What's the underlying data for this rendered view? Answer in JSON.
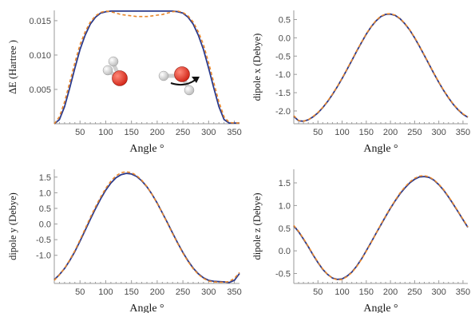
{
  "colors": {
    "series_solid": "#2b3a8c",
    "series_dashed": "#e8862a",
    "axis": "#9a9a9a",
    "oxygen": "#d42a1c",
    "hydrogen": "#bdbdbd"
  },
  "chart_data": [
    {
      "type": "line",
      "title": "",
      "xlabel": "Angle °",
      "ylabel": "ΔE (Hartree )",
      "xlim": [
        0,
        360
      ],
      "ylim": [
        0,
        0.0165
      ],
      "xticks": [
        50,
        100,
        150,
        200,
        250,
        300,
        350
      ],
      "yticks": [
        0.005,
        0.01,
        0.015
      ],
      "ytick_labels": [
        "0.005",
        "0.010",
        "0.015"
      ],
      "grid": false,
      "inset": "water-molecules",
      "series": [
        {
          "style": "solid",
          "x": [
            0,
            10,
            20,
            30,
            40,
            50,
            60,
            70,
            80,
            90,
            100,
            110,
            120,
            130,
            140,
            150,
            160,
            170,
            180,
            190,
            200,
            210,
            220,
            230,
            240,
            250,
            260,
            270,
            280,
            290,
            300,
            310,
            320,
            330,
            340,
            350,
            360
          ],
          "y": [
            0,
            0.0006,
            0.0025,
            0.0052,
            0.0081,
            0.0108,
            0.0129,
            0.0145,
            0.0155,
            0.0161,
            0.0163,
            0.0164,
            0.0164,
            0.0164,
            0.0164,
            0.0164,
            0.0164,
            0.0164,
            0.0164,
            0.0164,
            0.0164,
            0.0164,
            0.0164,
            0.0164,
            0.0163,
            0.0161,
            0.0155,
            0.0145,
            0.0129,
            0.0108,
            0.0081,
            0.0052,
            0.0025,
            0.0006,
            0.0001,
            0.0001,
            0.0001
          ]
        },
        {
          "style": "dashed",
          "x": [
            0,
            10,
            20,
            30,
            40,
            50,
            60,
            70,
            80,
            90,
            100,
            110,
            120,
            130,
            140,
            150,
            160,
            170,
            180,
            190,
            200,
            210,
            220,
            230,
            240,
            250,
            260,
            270,
            280,
            290,
            300,
            310,
            320,
            330,
            340,
            350,
            360
          ],
          "y": [
            0,
            0.001,
            0.0032,
            0.006,
            0.0089,
            0.0115,
            0.0134,
            0.0148,
            0.0157,
            0.0162,
            0.0164,
            0.0163,
            0.0161,
            0.0159,
            0.0158,
            0.0157,
            0.0156,
            0.0156,
            0.0156,
            0.0157,
            0.0158,
            0.0159,
            0.0161,
            0.0163,
            0.0164,
            0.0162,
            0.0157,
            0.0148,
            0.0134,
            0.0115,
            0.0089,
            0.006,
            0.0032,
            0.001,
            0.0002,
            0.0001,
            0.0001
          ]
        }
      ]
    },
    {
      "type": "line",
      "title": "",
      "xlabel": "Angle °",
      "ylabel": "dipole x (Debye)",
      "xlim": [
        0,
        360
      ],
      "ylim": [
        -2.35,
        0.75
      ],
      "xticks": [
        50,
        100,
        150,
        200,
        250,
        300,
        350
      ],
      "yticks": [
        0.5,
        0.0,
        -0.5,
        -1.0,
        -1.5,
        -2.0
      ],
      "ytick_labels": [
        "0.5",
        "0.0",
        "-0.5",
        "-1.0",
        "-1.5",
        "-2.0"
      ],
      "grid": false,
      "series": [
        {
          "style": "solid",
          "x": [
            0,
            10,
            20,
            30,
            40,
            50,
            60,
            70,
            80,
            90,
            100,
            110,
            120,
            130,
            140,
            150,
            160,
            170,
            180,
            190,
            200,
            210,
            220,
            230,
            240,
            250,
            260,
            270,
            280,
            290,
            300,
            310,
            320,
            330,
            340,
            350,
            360
          ],
          "y": [
            -2.15,
            -2.27,
            -2.28,
            -2.24,
            -2.16,
            -2.05,
            -1.91,
            -1.74,
            -1.55,
            -1.34,
            -1.11,
            -0.87,
            -0.62,
            -0.37,
            -0.13,
            0.1,
            0.3,
            0.46,
            0.58,
            0.64,
            0.65,
            0.61,
            0.52,
            0.38,
            0.21,
            0.0,
            -0.23,
            -0.48,
            -0.73,
            -0.98,
            -1.22,
            -1.44,
            -1.64,
            -1.82,
            -1.97,
            -2.09,
            -2.17
          ]
        },
        {
          "style": "dashed",
          "x": [
            0,
            10,
            20,
            30,
            40,
            50,
            60,
            70,
            80,
            90,
            100,
            110,
            120,
            130,
            140,
            150,
            160,
            170,
            180,
            190,
            200,
            210,
            220,
            230,
            240,
            250,
            260,
            270,
            280,
            290,
            300,
            310,
            320,
            330,
            340,
            350,
            360
          ],
          "y": [
            -2.13,
            -2.26,
            -2.28,
            -2.24,
            -2.15,
            -2.04,
            -1.9,
            -1.73,
            -1.54,
            -1.33,
            -1.1,
            -0.86,
            -0.61,
            -0.36,
            -0.12,
            0.11,
            0.31,
            0.47,
            0.59,
            0.65,
            0.66,
            0.62,
            0.53,
            0.39,
            0.22,
            0.01,
            -0.22,
            -0.47,
            -0.72,
            -0.97,
            -1.21,
            -1.43,
            -1.63,
            -1.81,
            -1.96,
            -2.08,
            -2.16
          ]
        }
      ]
    },
    {
      "type": "line",
      "title": "",
      "xlabel": "Angle °",
      "ylabel": "dipole y (Debye)",
      "xlim": [
        0,
        360
      ],
      "ylim": [
        -1.9,
        1.75
      ],
      "xticks": [
        50,
        100,
        150,
        200,
        250,
        300,
        350
      ],
      "yticks": [
        1.5,
        1.0,
        0.5,
        0.0,
        -0.5,
        -1.0
      ],
      "ytick_labels": [
        "1.5",
        "1.0",
        "0.5",
        "0.0",
        "-0.5",
        "-1.0"
      ],
      "grid": false,
      "series": [
        {
          "style": "solid",
          "x": [
            0,
            10,
            20,
            30,
            40,
            50,
            60,
            70,
            80,
            90,
            100,
            110,
            120,
            130,
            140,
            150,
            160,
            170,
            180,
            190,
            200,
            210,
            220,
            230,
            240,
            250,
            260,
            270,
            280,
            290,
            300,
            310,
            320,
            330,
            340,
            350,
            360
          ],
          "y": [
            -1.78,
            -1.62,
            -1.42,
            -1.17,
            -0.88,
            -0.55,
            -0.2,
            0.15,
            0.49,
            0.8,
            1.08,
            1.31,
            1.48,
            1.58,
            1.62,
            1.6,
            1.52,
            1.38,
            1.19,
            0.95,
            0.67,
            0.36,
            0.04,
            -0.29,
            -0.61,
            -0.91,
            -1.18,
            -1.41,
            -1.59,
            -1.72,
            -1.8,
            -1.83,
            -1.84,
            -1.85,
            -1.87,
            -1.8,
            -1.58
          ]
        },
        {
          "style": "dashed",
          "x": [
            0,
            10,
            20,
            30,
            40,
            50,
            60,
            70,
            80,
            90,
            100,
            110,
            120,
            130,
            140,
            150,
            160,
            170,
            180,
            190,
            200,
            210,
            220,
            230,
            240,
            250,
            260,
            270,
            280,
            290,
            300,
            310,
            320,
            330,
            340,
            350,
            360
          ],
          "y": [
            -1.8,
            -1.63,
            -1.41,
            -1.15,
            -0.85,
            -0.51,
            -0.15,
            0.21,
            0.55,
            0.86,
            1.14,
            1.37,
            1.54,
            1.64,
            1.67,
            1.64,
            1.55,
            1.4,
            1.2,
            0.95,
            0.66,
            0.35,
            0.02,
            -0.31,
            -0.63,
            -0.93,
            -1.2,
            -1.43,
            -1.61,
            -1.74,
            -1.82,
            -1.85,
            -1.86,
            -1.86,
            -1.84,
            -1.74,
            -1.55
          ]
        }
      ]
    },
    {
      "type": "line",
      "title": "",
      "xlabel": "Angle °",
      "ylabel": "dipole z (Debye)",
      "xlim": [
        0,
        360
      ],
      "ylim": [
        -0.72,
        1.8
      ],
      "xticks": [
        50,
        100,
        150,
        200,
        250,
        300,
        350
      ],
      "yticks": [
        1.5,
        1.0,
        0.5,
        0.0,
        -0.5
      ],
      "ytick_labels": [
        "1.5",
        "1.0",
        "0.5",
        "0.0",
        "-0.5"
      ],
      "grid": false,
      "series": [
        {
          "style": "solid",
          "x": [
            0,
            10,
            20,
            30,
            40,
            50,
            60,
            70,
            80,
            90,
            100,
            110,
            120,
            130,
            140,
            150,
            160,
            170,
            180,
            190,
            200,
            210,
            220,
            230,
            240,
            250,
            260,
            270,
            280,
            290,
            300,
            310,
            320,
            330,
            340,
            350,
            360
          ],
          "y": [
            0.55,
            0.42,
            0.26,
            0.09,
            -0.09,
            -0.26,
            -0.41,
            -0.52,
            -0.6,
            -0.63,
            -0.62,
            -0.56,
            -0.47,
            -0.34,
            -0.18,
            0.0,
            0.19,
            0.38,
            0.57,
            0.76,
            0.94,
            1.11,
            1.26,
            1.39,
            1.5,
            1.58,
            1.63,
            1.64,
            1.62,
            1.56,
            1.46,
            1.34,
            1.19,
            1.03,
            0.86,
            0.69,
            0.52
          ]
        },
        {
          "style": "dashed",
          "x": [
            0,
            10,
            20,
            30,
            40,
            50,
            60,
            70,
            80,
            90,
            100,
            110,
            120,
            130,
            140,
            150,
            160,
            170,
            180,
            190,
            200,
            210,
            220,
            230,
            240,
            250,
            260,
            270,
            280,
            290,
            300,
            310,
            320,
            330,
            340,
            350,
            360
          ],
          "y": [
            0.56,
            0.43,
            0.27,
            0.1,
            -0.08,
            -0.25,
            -0.4,
            -0.52,
            -0.6,
            -0.64,
            -0.63,
            -0.57,
            -0.48,
            -0.35,
            -0.19,
            -0.01,
            0.18,
            0.38,
            0.58,
            0.77,
            0.95,
            1.12,
            1.28,
            1.41,
            1.52,
            1.6,
            1.65,
            1.66,
            1.63,
            1.57,
            1.47,
            1.35,
            1.2,
            1.04,
            0.87,
            0.7,
            0.53
          ]
        }
      ]
    }
  ]
}
